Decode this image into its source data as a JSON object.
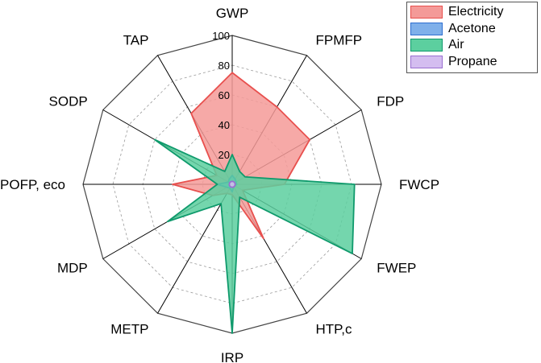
{
  "chart_data": {
    "type": "radar",
    "axes": [
      "GWP",
      "FPMFP",
      "FDP",
      "FWCP",
      "FWEP",
      "HTP,c",
      "IRP",
      "METP",
      "MDP",
      "POFP, eco",
      "SODP",
      "TAP"
    ],
    "rlim": [
      0,
      100
    ],
    "ticks": [
      20,
      40,
      60,
      80,
      100
    ],
    "grid": true,
    "legend_position": "top-right",
    "series": [
      {
        "name": "Electricity",
        "color": "#e8504e",
        "fill": "#f49a98",
        "values": [
          75,
          60,
          60,
          35,
          8,
          42,
          7,
          7,
          15,
          40,
          12,
          55
        ]
      },
      {
        "name": "Acetone",
        "color": "#2e6fd0",
        "fill": "#7fb0ea",
        "values": [
          6,
          4,
          3,
          3,
          2,
          2,
          5,
          3,
          4,
          10,
          3,
          4
        ]
      },
      {
        "name": "Air",
        "color": "#0f9a6c",
        "fill": "#5ccf9f",
        "values": [
          20,
          10,
          10,
          82,
          93,
          10,
          100,
          15,
          50,
          10,
          60,
          10
        ]
      },
      {
        "name": "Propane",
        "color": "#9a6fd0",
        "fill": "#d4bdf0",
        "values": [
          2,
          2,
          2,
          2,
          2,
          2,
          2,
          2,
          2,
          2,
          2,
          2
        ]
      }
    ]
  }
}
